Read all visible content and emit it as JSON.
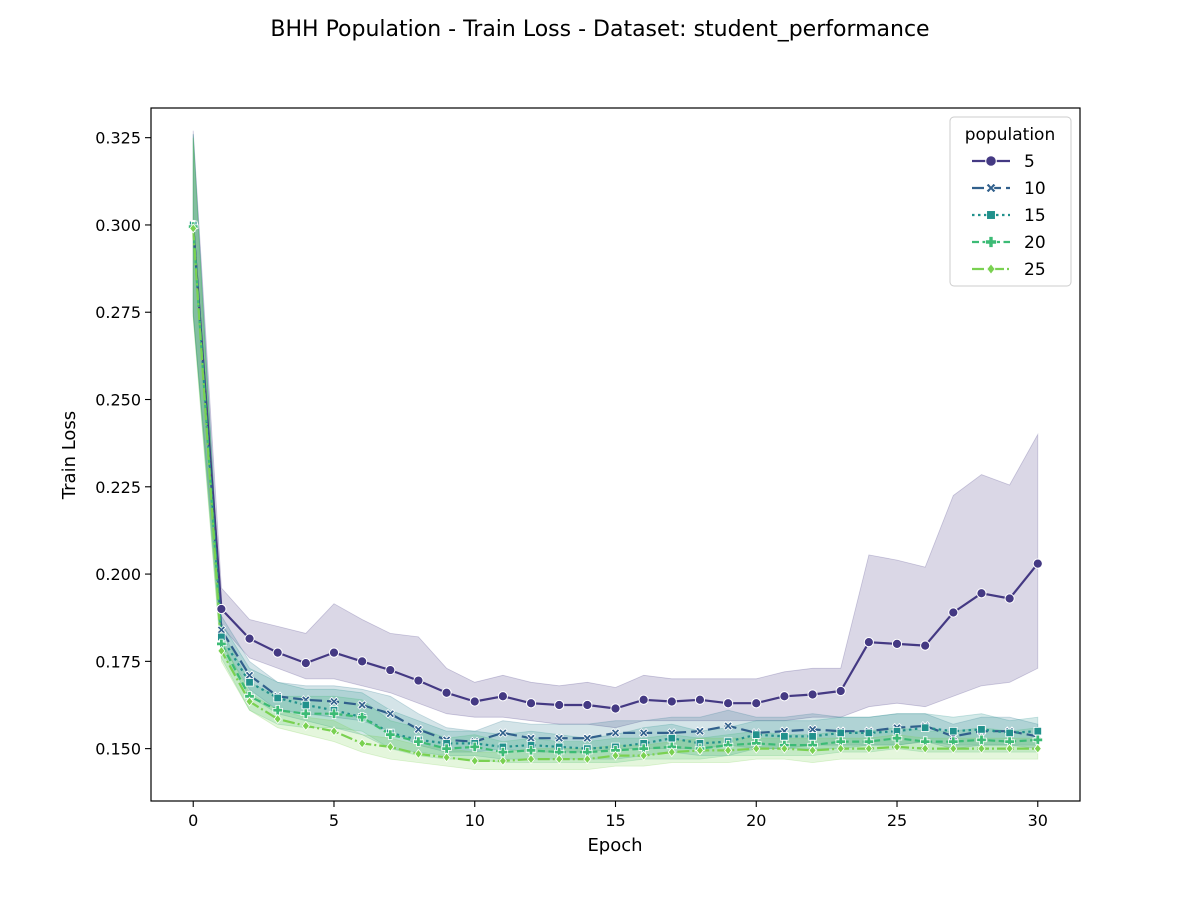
{
  "chart_data": {
    "type": "line",
    "title": "BHH Population - Train Loss - Dataset: student_performance",
    "xlabel": "Epoch",
    "ylabel": "Train Loss",
    "xlim": [
      -1.5,
      31.5
    ],
    "ylim": [
      0.135,
      0.3335
    ],
    "xticks": [
      0,
      5,
      10,
      15,
      20,
      25,
      30
    ],
    "yticks": [
      0.15,
      0.175,
      0.2,
      0.225,
      0.25,
      0.275,
      0.3,
      0.325
    ],
    "ytick_labels": [
      "0.150",
      "0.175",
      "0.200",
      "0.225",
      "0.250",
      "0.275",
      "0.300",
      "0.325"
    ],
    "legend": {
      "title": "population",
      "position": "upper right"
    },
    "grid": false,
    "x": [
      0,
      1,
      2,
      3,
      4,
      5,
      6,
      7,
      8,
      9,
      10,
      11,
      12,
      13,
      14,
      15,
      16,
      17,
      18,
      19,
      20,
      21,
      22,
      23,
      24,
      25,
      26,
      27,
      28,
      29,
      30
    ],
    "series": [
      {
        "name": "5",
        "color": "#443983",
        "marker": "circle",
        "dash": "solid",
        "values": [
          0.3,
          0.19,
          0.1815,
          0.1775,
          0.1745,
          0.1775,
          0.175,
          0.1725,
          0.1695,
          0.166,
          0.1635,
          0.165,
          0.163,
          0.1625,
          0.1625,
          0.1615,
          0.164,
          0.1635,
          0.164,
          0.163,
          0.163,
          0.165,
          0.1655,
          0.1665,
          0.1805,
          0.18,
          0.1795,
          0.189,
          0.1945,
          0.193,
          0.203
        ],
        "lower": [
          0.274,
          0.185,
          0.176,
          0.173,
          0.17,
          0.17,
          0.168,
          0.166,
          0.163,
          0.16,
          0.159,
          0.159,
          0.158,
          0.157,
          0.157,
          0.156,
          0.158,
          0.158,
          0.158,
          0.158,
          0.158,
          0.158,
          0.159,
          0.159,
          0.162,
          0.163,
          0.162,
          0.165,
          0.168,
          0.169,
          0.173
        ],
        "upper": [
          0.327,
          0.196,
          0.187,
          0.185,
          0.183,
          0.1915,
          0.187,
          0.183,
          0.182,
          0.173,
          0.169,
          0.171,
          0.169,
          0.168,
          0.169,
          0.1675,
          0.171,
          0.17,
          0.17,
          0.17,
          0.17,
          0.172,
          0.173,
          0.173,
          0.2055,
          0.204,
          0.202,
          0.2225,
          0.2285,
          0.2255,
          0.24
        ]
      },
      {
        "name": "10",
        "color": "#2a788e",
        "colorDark": "#31608c",
        "marker": "x",
        "dash": "12,5",
        "values": [
          0.3,
          0.184,
          0.171,
          0.165,
          0.164,
          0.1635,
          0.1625,
          0.16,
          0.1555,
          0.1525,
          0.152,
          0.1545,
          0.153,
          0.153,
          0.153,
          0.1545,
          0.1545,
          0.1545,
          0.155,
          0.1565,
          0.1545,
          0.155,
          0.1555,
          0.155,
          0.155,
          0.156,
          0.1565,
          0.1535,
          0.155,
          0.155,
          0.1535
        ],
        "lower": [
          0.275,
          0.18,
          0.167,
          0.161,
          0.16,
          0.159,
          0.158,
          0.155,
          0.151,
          0.149,
          0.149,
          0.15,
          0.149,
          0.149,
          0.149,
          0.15,
          0.15,
          0.15,
          0.15,
          0.151,
          0.15,
          0.15,
          0.151,
          0.151,
          0.151,
          0.151,
          0.152,
          0.15,
          0.151,
          0.151,
          0.15
        ],
        "upper": [
          0.326,
          0.188,
          0.175,
          0.169,
          0.168,
          0.168,
          0.167,
          0.165,
          0.16,
          0.156,
          0.155,
          0.158,
          0.157,
          0.157,
          0.157,
          0.158,
          0.158,
          0.159,
          0.159,
          0.161,
          0.159,
          0.159,
          0.16,
          0.159,
          0.159,
          0.16,
          0.16,
          0.157,
          0.159,
          0.159,
          0.157
        ]
      },
      {
        "name": "15",
        "color": "#21918c",
        "marker": "square",
        "dash": "2.5,3.5",
        "values": [
          0.3,
          0.182,
          0.169,
          0.1645,
          0.1625,
          0.161,
          0.159,
          0.1545,
          0.1525,
          0.1515,
          0.1515,
          0.1505,
          0.151,
          0.1505,
          0.15,
          0.1505,
          0.1515,
          0.153,
          0.1515,
          0.152,
          0.154,
          0.1535,
          0.1535,
          0.1545,
          0.1545,
          0.155,
          0.156,
          0.155,
          0.1555,
          0.1545,
          0.155
        ],
        "lower": [
          0.275,
          0.178,
          0.165,
          0.16,
          0.158,
          0.156,
          0.154,
          0.15,
          0.149,
          0.148,
          0.148,
          0.147,
          0.147,
          0.147,
          0.147,
          0.147,
          0.148,
          0.149,
          0.148,
          0.148,
          0.15,
          0.15,
          0.15,
          0.15,
          0.151,
          0.151,
          0.152,
          0.151,
          0.151,
          0.151,
          0.151
        ],
        "upper": [
          0.326,
          0.186,
          0.173,
          0.169,
          0.167,
          0.167,
          0.166,
          0.161,
          0.158,
          0.155,
          0.155,
          0.154,
          0.155,
          0.154,
          0.153,
          0.154,
          0.156,
          0.157,
          0.155,
          0.156,
          0.158,
          0.158,
          0.158,
          0.159,
          0.159,
          0.16,
          0.16,
          0.159,
          0.16,
          0.158,
          0.159
        ]
      },
      {
        "name": "20",
        "color": "#3cbb75",
        "marker": "plus",
        "dash": "7,3.5",
        "values": [
          0.2995,
          0.18,
          0.165,
          0.161,
          0.16,
          0.16,
          0.159,
          0.154,
          0.152,
          0.15,
          0.1505,
          0.149,
          0.1495,
          0.149,
          0.149,
          0.1495,
          0.15,
          0.1505,
          0.15,
          0.151,
          0.1515,
          0.151,
          0.151,
          0.152,
          0.152,
          0.153,
          0.152,
          0.152,
          0.1525,
          0.152,
          0.1525
        ],
        "lower": [
          0.274,
          0.176,
          0.161,
          0.157,
          0.156,
          0.156,
          0.155,
          0.15,
          0.148,
          0.147,
          0.147,
          0.146,
          0.146,
          0.146,
          0.146,
          0.146,
          0.147,
          0.147,
          0.147,
          0.148,
          0.148,
          0.148,
          0.148,
          0.149,
          0.149,
          0.15,
          0.149,
          0.149,
          0.149,
          0.149,
          0.149
        ],
        "upper": [
          0.325,
          0.184,
          0.169,
          0.165,
          0.165,
          0.165,
          0.164,
          0.158,
          0.156,
          0.153,
          0.154,
          0.152,
          0.153,
          0.152,
          0.152,
          0.153,
          0.153,
          0.154,
          0.153,
          0.154,
          0.155,
          0.154,
          0.154,
          0.155,
          0.155,
          0.156,
          0.155,
          0.155,
          0.156,
          0.155,
          0.156
        ]
      },
      {
        "name": "25",
        "color": "#7ad151",
        "marker": "diamond",
        "dash": "12,3,2,3",
        "values": [
          0.299,
          0.178,
          0.1635,
          0.1585,
          0.1565,
          0.155,
          0.1515,
          0.1505,
          0.1485,
          0.1475,
          0.1465,
          0.1465,
          0.147,
          0.147,
          0.147,
          0.148,
          0.148,
          0.149,
          0.1495,
          0.1495,
          0.15,
          0.15,
          0.1495,
          0.15,
          0.15,
          0.1505,
          0.15,
          0.15,
          0.15,
          0.15,
          0.15
        ],
        "lower": [
          0.273,
          0.175,
          0.161,
          0.156,
          0.154,
          0.152,
          0.149,
          0.147,
          0.146,
          0.145,
          0.144,
          0.144,
          0.144,
          0.144,
          0.144,
          0.145,
          0.145,
          0.146,
          0.146,
          0.146,
          0.147,
          0.147,
          0.146,
          0.147,
          0.147,
          0.147,
          0.147,
          0.147,
          0.147,
          0.147,
          0.147
        ],
        "upper": [
          0.325,
          0.181,
          0.166,
          0.161,
          0.159,
          0.158,
          0.154,
          0.153,
          0.151,
          0.15,
          0.149,
          0.149,
          0.15,
          0.15,
          0.15,
          0.151,
          0.151,
          0.152,
          0.153,
          0.153,
          0.153,
          0.153,
          0.153,
          0.153,
          0.153,
          0.154,
          0.153,
          0.153,
          0.153,
          0.153,
          0.153
        ]
      }
    ]
  }
}
